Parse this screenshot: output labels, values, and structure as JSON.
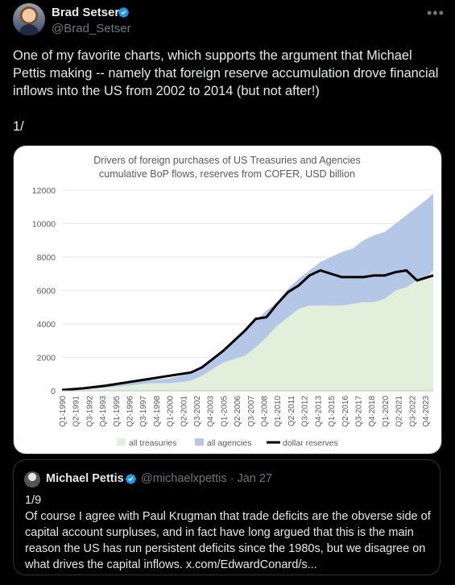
{
  "author": {
    "name": "Brad Setser",
    "handle": "@Brad_Setser",
    "more_icon": "more-horizontal-icon",
    "verified_color": "#1d9bf0"
  },
  "tweet": {
    "text": "One of my favorite charts, which supports the argument that Michael Pettis making -- namely that foreign reserve accumulation drove financial inflows into the US from 2002 to 2014 (but not after!)",
    "numbering": "1/"
  },
  "chart_data": {
    "type": "area",
    "title": "Drivers of foreign purchases of US Treasuries and Agencies",
    "subtitle": "cumulative BoP flows, reserves from COFER, USD billion",
    "ylim": [
      0,
      12000
    ],
    "yticks": [
      0,
      2000,
      4000,
      6000,
      8000,
      10000,
      12000
    ],
    "xlim": [
      1990.0,
      2024.5
    ],
    "x_tick_labels": [
      "Q1-1990",
      "Q2-1991",
      "Q3-1992",
      "Q4-1993",
      "Q1-1995",
      "Q2-1996",
      "Q3-1997",
      "Q4-1998",
      "Q1-2000",
      "Q2-2001",
      "Q3-2002",
      "Q4-2003",
      "Q1-2005",
      "Q2-2006",
      "Q3-2007",
      "Q4-2008",
      "Q1-2010",
      "Q2-2011",
      "Q3-2012",
      "Q4-2013",
      "Q1-2015",
      "Q2-2016",
      "Q3-2017",
      "Q4-2018",
      "Q1-2020",
      "Q2-2021",
      "Q3-2022",
      "Q4-2023"
    ],
    "x_tick_values": [
      1990.0,
      1991.25,
      1992.5,
      1993.75,
      1995.0,
      1996.25,
      1997.5,
      1998.75,
      2000.0,
      2001.25,
      2002.5,
      2003.75,
      2005.0,
      2006.25,
      2007.5,
      2008.75,
      2010.0,
      2011.25,
      2012.5,
      2013.75,
      2015.0,
      2016.25,
      2017.5,
      2018.75,
      2020.0,
      2021.25,
      2022.5,
      2023.75
    ],
    "x": [
      1990,
      1992,
      1994,
      1996,
      1998,
      2000,
      2002,
      2003,
      2004,
      2005,
      2006,
      2007,
      2008,
      2009,
      2010,
      2011,
      2012,
      2013,
      2014,
      2015,
      2016,
      2017,
      2018,
      2019,
      2020,
      2021,
      2022,
      2023,
      2024,
      2024.5
    ],
    "series": [
      {
        "name": "all treasuries",
        "color": "#e2efda",
        "values": [
          50,
          100,
          200,
          300,
          450,
          450,
          600,
          900,
          1300,
          1700,
          1900,
          2100,
          2600,
          3200,
          3900,
          4400,
          4900,
          5100,
          5100,
          5100,
          5100,
          5200,
          5300,
          5300,
          5500,
          6000,
          6200,
          6600,
          6900,
          7200
        ]
      },
      {
        "name": "all agencies",
        "color": "#b4c7e7",
        "values": [
          60,
          120,
          250,
          420,
          620,
          750,
          1050,
          1450,
          1950,
          2500,
          3000,
          3600,
          4200,
          4800,
          5300,
          6100,
          6700,
          7200,
          7700,
          8000,
          8300,
          8500,
          9000,
          9300,
          9500,
          10000,
          10500,
          11000,
          11500,
          11800
        ]
      },
      {
        "name": "dollar reserves",
        "color": "#000000",
        "values": [
          50,
          150,
          300,
          500,
          700,
          900,
          1100,
          1400,
          1900,
          2400,
          3000,
          3600,
          4300,
          4400,
          5200,
          5900,
          6300,
          6900,
          7200,
          7000,
          6800,
          6800,
          6800,
          6900,
          6900,
          7100,
          7200,
          6600,
          6800,
          6900
        ]
      }
    ]
  },
  "quote": {
    "name": "Michael Pettis",
    "handle": "@michaelxpettis",
    "date": "· Jan 27",
    "line1": "1/9",
    "text": "Of course I agree with Paul Krugman that trade deficits are the obverse side of capital account surpluses, and in fact have long argued that this is the main reason the US has run persistent deficits since the 1980s, but we disagree on what drives the capital inflows. x.com/EdwardConard/s..."
  }
}
